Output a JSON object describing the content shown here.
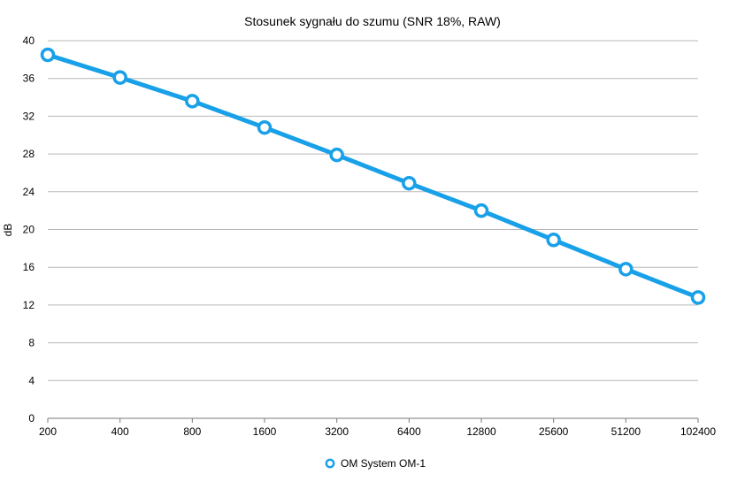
{
  "chart_data": {
    "type": "line",
    "title": "Stosunek sygnału do szumu (SNR 18%, RAW)",
    "xlabel": "",
    "ylabel": "dB",
    "categories": [
      "200",
      "400",
      "800",
      "1600",
      "3200",
      "6400",
      "12800",
      "25600",
      "51200",
      "102400"
    ],
    "series": [
      {
        "name": "OM System OM-1",
        "values": [
          38.5,
          36.1,
          33.6,
          30.8,
          27.9,
          24.9,
          22.0,
          18.9,
          15.8,
          12.8
        ]
      }
    ],
    "ylim": [
      0,
      40
    ],
    "yticks": [
      "0",
      "4",
      "8",
      "12",
      "16",
      "20",
      "24",
      "28",
      "32",
      "36",
      "40"
    ],
    "grid": "horizontal",
    "legend": "bottom-center",
    "colors": {
      "series": "#18a0e8",
      "grid": "#b8b8b8",
      "axis": "#7a7a7a"
    }
  }
}
